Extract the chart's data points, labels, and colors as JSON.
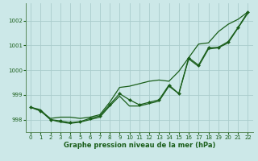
{
  "background_color": "#cce8e8",
  "grid_color": "#aacccc",
  "line_color": "#1a5e1a",
  "marker_color": "#1a5e1a",
  "xlabel": "Graphe pression niveau de la mer (hPa)",
  "xlabel_fontsize": 6.0,
  "xlim": [
    -0.5,
    22.5
  ],
  "ylim": [
    997.5,
    1002.7
  ],
  "yticks": [
    998,
    999,
    1000,
    1001,
    1002
  ],
  "xticks": [
    0,
    1,
    2,
    3,
    4,
    5,
    6,
    7,
    8,
    9,
    10,
    11,
    12,
    13,
    14,
    15,
    16,
    17,
    18,
    19,
    20,
    21,
    22
  ],
  "hours": [
    0,
    1,
    2,
    3,
    4,
    5,
    6,
    7,
    8,
    9,
    10,
    11,
    12,
    13,
    14,
    15,
    16,
    17,
    18,
    19,
    20,
    21,
    22
  ],
  "line1": [
    998.5,
    998.4,
    998.0,
    997.9,
    997.85,
    997.9,
    998.0,
    998.1,
    998.55,
    998.95,
    998.55,
    998.55,
    998.65,
    998.75,
    999.35,
    999.05,
    1000.45,
    1000.15,
    1000.85,
    1000.9,
    1001.1,
    1001.7,
    1002.3
  ],
  "line2": [
    998.5,
    998.35,
    998.0,
    997.95,
    997.88,
    997.92,
    998.05,
    998.15,
    998.6,
    999.05,
    998.8,
    998.6,
    998.7,
    998.8,
    999.4,
    999.05,
    1000.5,
    1000.2,
    1000.9,
    1000.92,
    1001.15,
    1001.72,
    1002.35
  ],
  "line3": [
    998.5,
    998.35,
    998.05,
    998.1,
    998.1,
    998.05,
    998.1,
    998.2,
    998.7,
    999.3,
    999.35,
    999.45,
    999.55,
    999.6,
    999.55,
    999.95,
    1000.5,
    1001.05,
    1001.1,
    1001.55,
    1001.85,
    1002.05,
    1002.35
  ]
}
